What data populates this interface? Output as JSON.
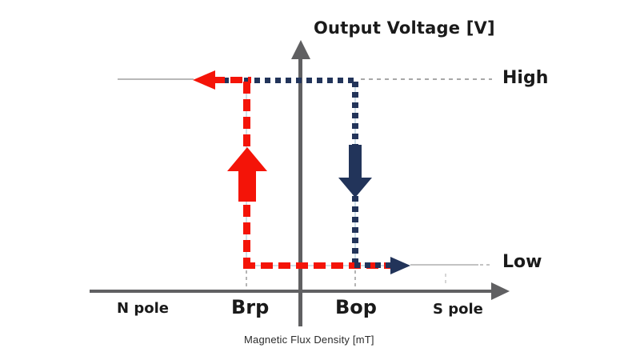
{
  "diagram": {
    "title": "Output Voltage [V]",
    "x_axis_caption": "Magnetic Flux Density [mT]",
    "levels": {
      "high": "High",
      "low": "Low"
    },
    "x_labels": {
      "n_pole": "N pole",
      "brp": "Brp",
      "bop": "Bop",
      "s_pole": "S pole"
    },
    "paths": {
      "release_path": "red dashed: High level turns down at Brp to Low, arrow pointing up and left toward N pole",
      "operate_path": "navy dotted: High level turns down at Bop to Low, arrow pointing down and right toward S pole"
    },
    "colors": {
      "release_red": "#f41408",
      "operate_navy": "#22345a",
      "axis_gray": "#606062",
      "guide_gray": "#b8b8b8",
      "text_color": "#1a1a1a"
    }
  }
}
